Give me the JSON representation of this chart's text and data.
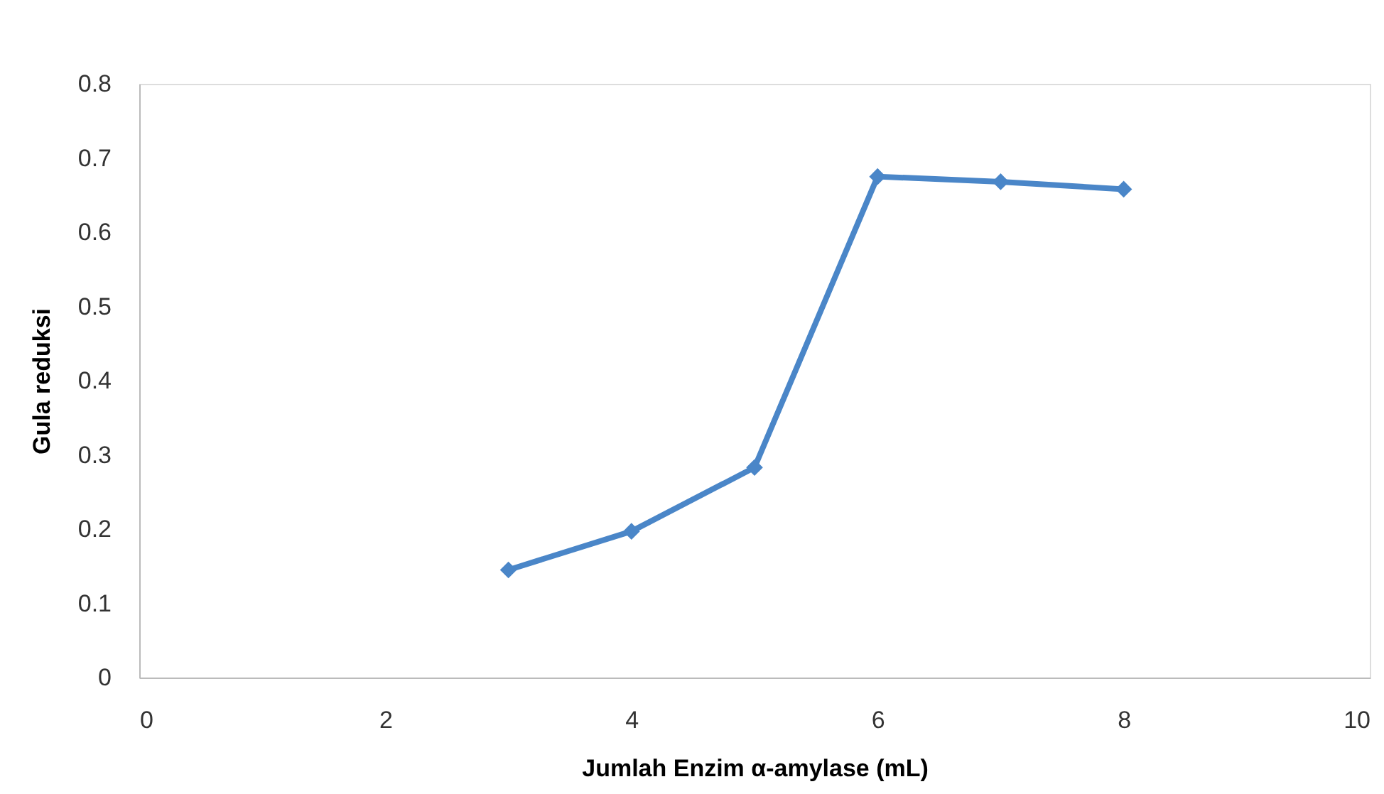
{
  "chart_data": {
    "type": "line",
    "xlabel": "Jumlah Enzim α-amylase (mL)",
    "ylabel": "Gula reduksi",
    "x": [
      3,
      4,
      5,
      6,
      7,
      8
    ],
    "series": [
      {
        "color": "#4a86c8",
        "values": [
          0.145,
          0.197,
          0.283,
          0.675,
          0.668,
          0.658
        ]
      }
    ],
    "xlim": [
      0,
      10
    ],
    "xticks": [
      0,
      2,
      4,
      6,
      8,
      10
    ],
    "ylim": [
      0,
      0.8
    ],
    "yticks": [
      0,
      0.1,
      0.2,
      0.3,
      0.4,
      0.5,
      0.6,
      0.7,
      0.8
    ],
    "grid": false,
    "marker": "diamond",
    "line_style": "solid"
  }
}
